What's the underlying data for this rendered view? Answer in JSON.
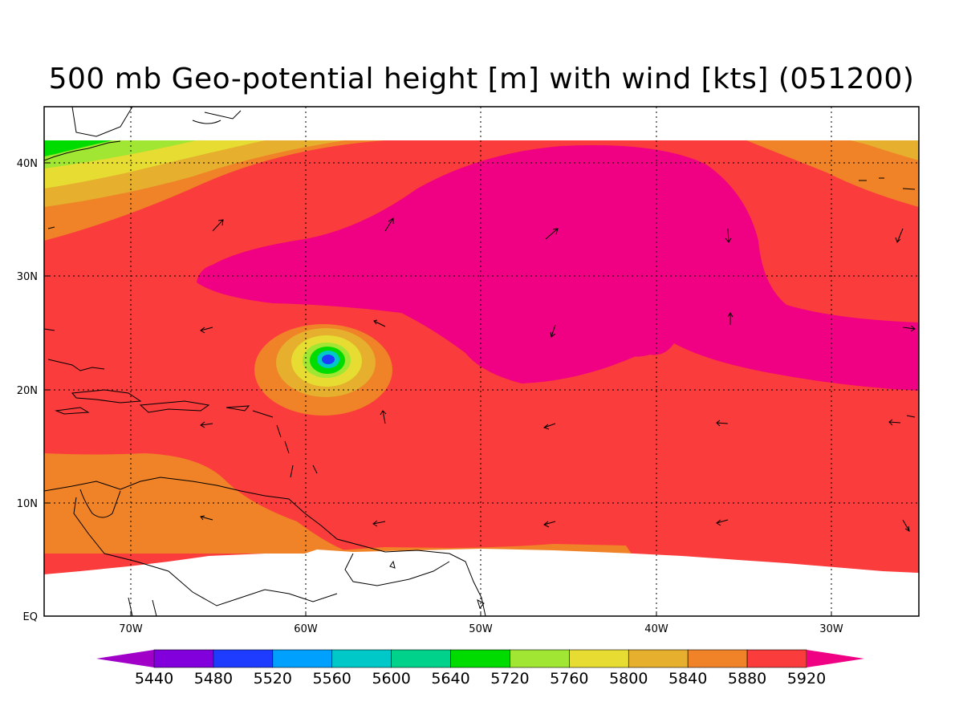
{
  "title": "500 mb Geo-potential height [m] with wind [kts] (051200)",
  "axes": {
    "lon_ticks": [
      "70W",
      "60W",
      "50W",
      "40W",
      "30W"
    ],
    "lat_ticks": [
      "EQ",
      "10N",
      "20N",
      "30N",
      "40N"
    ]
  },
  "colorbar": {
    "levels": [
      "5440",
      "5480",
      "5520",
      "5560",
      "5600",
      "5640",
      "5720",
      "5760",
      "5800",
      "5840",
      "5880",
      "5920"
    ],
    "colors": [
      "#a000c8",
      "#8200dc",
      "#1e3cff",
      "#00a0ff",
      "#00c8c8",
      "#00d28c",
      "#00dc00",
      "#a0e632",
      "#e6dc32",
      "#e6af2d",
      "#f08228",
      "#fa3c3c",
      "#f00082"
    ]
  },
  "fill_colors": {
    "green": "#00dc00",
    "yellow_green": "#a0e632",
    "yellow": "#e6dc32",
    "gold": "#e6af2d",
    "orange": "#f08228",
    "red": "#fa3c3c",
    "magenta": "#f00082",
    "blue": "#1e3cff",
    "cyan": "#00c8c8"
  }
}
